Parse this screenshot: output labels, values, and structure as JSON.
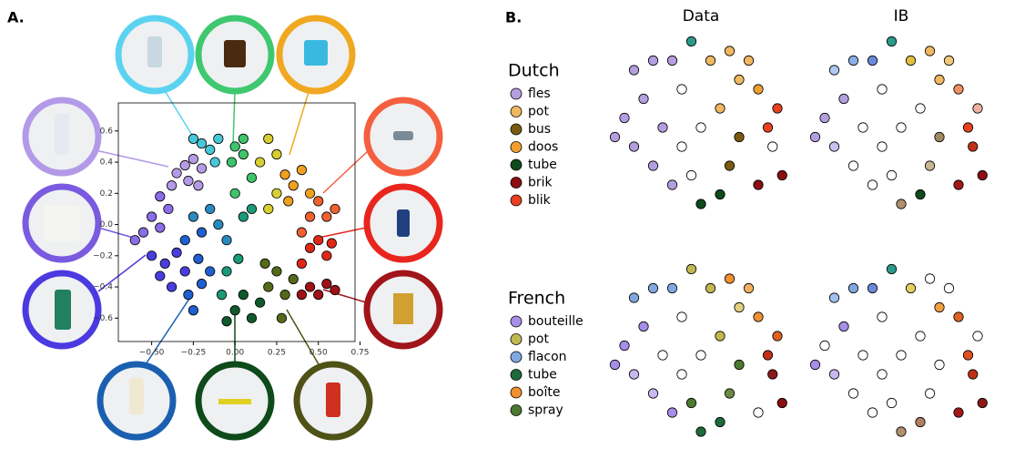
{
  "panel_labels": [
    "A.",
    "B."
  ],
  "chart_data": [
    {
      "type": "scatter",
      "xlim": [
        -0.7,
        0.72
      ],
      "ylim": [
        -0.75,
        0.78
      ],
      "xticks": [
        {
          "value": -0.5,
          "label": "−0.50"
        },
        {
          "value": -0.25,
          "label": "−0.25"
        },
        {
          "value": 0,
          "label": "0.00"
        },
        {
          "value": 0.25,
          "label": "0.25"
        },
        {
          "value": 0.5,
          "label": "0.50"
        },
        {
          "value": 0.75,
          "label": "0.75"
        }
      ],
      "yticks": [
        0.6,
        0.4,
        0.2,
        {
          "value": 0,
          "label": "0.0"
        },
        {
          "value": -0.2,
          "label": "−0.2"
        },
        {
          "value": -0.4,
          "label": "−0.4"
        },
        {
          "value": -0.6,
          "label": "−0.6"
        }
      ],
      "x": [
        -0.3,
        -0.35,
        -0.25,
        -0.2,
        -0.38,
        -0.28,
        -0.22,
        -0.45,
        -0.4,
        -0.5,
        -0.55,
        -0.45,
        -0.6,
        -0.5,
        -0.42,
        -0.35,
        -0.45,
        -0.3,
        -0.38,
        -0.28,
        -0.2,
        -0.22,
        -0.15,
        -0.25,
        -0.3,
        -0.2,
        -0.1,
        -0.05,
        -0.15,
        -0.25,
        -0.2,
        -0.15,
        -0.1,
        -0.25,
        -0.12,
        0.0,
        0.05,
        -0.02,
        0.05,
        0.1,
        0.0,
        -0.05,
        0.02,
        -0.08,
        0.05,
        0.1,
        0.0,
        0.05,
        0.1,
        0.15,
        -0.05,
        0.2,
        0.25,
        0.3,
        0.18,
        0.28,
        0.35,
        0.2,
        0.25,
        0.15,
        0.25,
        0.2,
        0.3,
        0.35,
        0.4,
        0.32,
        0.45,
        0.5,
        0.45,
        0.55,
        0.4,
        0.6,
        0.5,
        0.55,
        0.45,
        0.58,
        0.4,
        0.45,
        0.55,
        0.5,
        0.6,
        0.4
      ],
      "y": [
        0.38,
        0.33,
        0.42,
        0.36,
        0.25,
        0.28,
        0.25,
        0.18,
        0.1,
        0.05,
        -0.05,
        -0.02,
        -0.1,
        -0.2,
        -0.25,
        -0.18,
        -0.33,
        -0.3,
        -0.4,
        -0.45,
        -0.38,
        -0.22,
        -0.3,
        -0.55,
        -0.1,
        -0.05,
        0.0,
        -0.1,
        0.1,
        0.05,
        0.52,
        0.48,
        0.55,
        0.55,
        0.4,
        0.5,
        0.45,
        0.4,
        0.55,
        0.3,
        0.2,
        -0.3,
        -0.22,
        -0.45,
        0.05,
        0.1,
        -0.55,
        -0.45,
        -0.6,
        -0.5,
        -0.62,
        -0.4,
        -0.3,
        -0.45,
        -0.25,
        -0.6,
        -0.35,
        0.55,
        0.45,
        0.4,
        0.2,
        0.1,
        0.32,
        0.25,
        0.35,
        0.15,
        0.2,
        0.15,
        0.05,
        0.05,
        -0.05,
        0.1,
        -0.1,
        -0.2,
        -0.15,
        -0.12,
        -0.25,
        -0.4,
        -0.38,
        -0.45,
        -0.42,
        -0.45
      ],
      "colors": [
        "#b59be6",
        "#b59be6",
        "#b59be6",
        "#b59be6",
        "#b59be6",
        "#b59be6",
        "#b59be6",
        "#8a6de8",
        "#8a6de8",
        "#8a6de8",
        "#8a6de8",
        "#8a6de8",
        "#8a6de8",
        "#4a3de0",
        "#4a3de0",
        "#4a3de0",
        "#4a3de0",
        "#4a3de0",
        "#4a3de0",
        "#1f5fd0",
        "#1f5fd0",
        "#1f5fd0",
        "#1f5fd0",
        "#1f5fd0",
        "#1f5fd0",
        "#1f5fd0",
        "#2a8ac0",
        "#2a8ac0",
        "#2a8ac0",
        "#2a8ac0",
        "#46c8d8",
        "#46c8d8",
        "#46c8d8",
        "#46c8d8",
        "#46c8d8",
        "#3ec46a",
        "#3ec46a",
        "#3ec46a",
        "#3ec46a",
        "#3ec46a",
        "#3ec46a",
        "#1a9a78",
        "#1a9a78",
        "#1a9a78",
        "#1a9a78",
        "#1a9a78",
        "#0f5a2a",
        "#0f5a2a",
        "#0f5a2a",
        "#0f5a2a",
        "#0f5a2a",
        "#556a18",
        "#556a18",
        "#556a18",
        "#556a18",
        "#556a18",
        "#556a18",
        "#d6cf30",
        "#d6cf30",
        "#d6cf30",
        "#d6cf30",
        "#d6cf30",
        "#f0a020",
        "#f0a020",
        "#f0a020",
        "#f0a020",
        "#f0a020",
        "#f06030",
        "#f06030",
        "#f06030",
        "#f06030",
        "#f06030",
        "#e02818",
        "#e02818",
        "#e02818",
        "#e02818",
        "#e02818",
        "#a01018",
        "#a01018",
        "#a01018",
        "#a01018",
        "#a01018"
      ]
    },
    {
      "type": "scatter",
      "title": "Data",
      "xlim": [
        -1,
        1
      ],
      "ylim": [
        -1,
        1
      ],
      "legend": {
        "title": "Dutch",
        "names": [
          "fles",
          "pot",
          "bus",
          "doos",
          "tube",
          "brik",
          "blik"
        ],
        "colors": [
          "#b49ee0",
          "#f0b860",
          "#7a5a10",
          "#f0a030",
          "#0e4a1a",
          "#8a0e12",
          "#e84020"
        ]
      },
      "x": [
        -0.7,
        -0.5,
        -0.6,
        -0.8,
        -0.7,
        -0.5,
        -0.3,
        -0.4,
        -0.2,
        -0.1,
        0.1,
        0.3,
        0.4,
        0.6,
        0.8,
        0.7,
        0.75,
        0.85,
        0.6,
        0.3,
        0.2,
        0.0,
        -0.1,
        0.0,
        0.2,
        -0.2,
        0.4,
        -0.3,
        0.5,
        -0.9
      ],
      "y": [
        0.6,
        0.7,
        0.3,
        0.1,
        -0.2,
        -0.4,
        -0.6,
        0.0,
        0.4,
        0.9,
        0.7,
        0.8,
        0.5,
        0.4,
        0.2,
        0.0,
        -0.2,
        -0.5,
        -0.6,
        -0.4,
        -0.7,
        -0.8,
        -0.5,
        0.0,
        0.2,
        -0.2,
        -0.1,
        0.7,
        0.7,
        -0.1
      ],
      "colors": [
        "#b49ee0",
        "#b49ee0",
        "#b49ee0",
        "#b49ee0",
        "#b49ee0",
        "#b49ee0",
        "#b49ee0",
        "#b49ee0",
        "#ffffff",
        "#2a9a8a",
        "#f0b860",
        "#f0b860",
        "#f0b860",
        "#f0a030",
        "#e84020",
        "#e84020",
        "#ffffff",
        "#8a0e12",
        "#8a0e12",
        "#7a5a10",
        "#0e4a1a",
        "#0e4a1a",
        "#ffffff",
        "#ffffff",
        "#f0b860",
        "#ffffff",
        "#7a5a10",
        "#b49ee0",
        "#f0b860",
        "#b49ee0"
      ]
    },
    {
      "type": "scatter",
      "title": "IB",
      "xlim": [
        -1,
        1
      ],
      "ylim": [
        -1,
        1
      ],
      "x": [
        -0.7,
        -0.5,
        -0.6,
        -0.8,
        -0.7,
        -0.5,
        -0.3,
        -0.4,
        -0.2,
        -0.1,
        0.1,
        0.3,
        0.4,
        0.6,
        0.8,
        0.7,
        0.75,
        0.85,
        0.6,
        0.3,
        0.2,
        0.0,
        -0.1,
        0.0,
        0.2,
        -0.2,
        0.4,
        -0.3,
        0.5,
        -0.9
      ],
      "y": [
        0.6,
        0.7,
        0.3,
        0.1,
        -0.2,
        -0.4,
        -0.6,
        0.0,
        0.4,
        0.9,
        0.7,
        0.8,
        0.5,
        0.4,
        0.2,
        0.0,
        -0.2,
        -0.5,
        -0.6,
        -0.4,
        -0.7,
        -0.8,
        -0.5,
        0.0,
        0.2,
        -0.2,
        -0.1,
        0.7,
        0.7,
        -0.1
      ],
      "colors": [
        "#b0c8f0",
        "#8ab0e8",
        "#b49ee0",
        "#b49ee0",
        "#c8c0f0",
        "#ffffff",
        "#ffffff",
        "#ffffff",
        "#ffffff",
        "#2a9a8a",
        "#e0c040",
        "#f0b860",
        "#f0b860",
        "#f09060",
        "#f0b0a0",
        "#e84020",
        "#c03018",
        "#8a0e12",
        "#a01818",
        "#c8b890",
        "#0e4a1a",
        "#b09070",
        "#ffffff",
        "#ffffff",
        "#ffffff",
        "#ffffff",
        "#a08860",
        "#6a8ad8",
        "#f0c878",
        "#b49ee0"
      ]
    },
    {
      "type": "scatter",
      "xlim": [
        -1,
        1
      ],
      "ylim": [
        -1,
        1
      ],
      "legend": {
        "title": "French",
        "names": [
          "bouteille",
          "pot",
          "flacon",
          "tube",
          "boîte",
          "spray"
        ],
        "colors": [
          "#a78ee8",
          "#c0b850",
          "#7fa8e0",
          "#1e6a3a",
          "#f09030",
          "#4a7a30"
        ]
      },
      "x": [
        -0.7,
        -0.5,
        -0.6,
        -0.8,
        -0.7,
        -0.5,
        -0.3,
        -0.4,
        -0.2,
        -0.1,
        0.1,
        0.3,
        0.4,
        0.6,
        0.8,
        0.7,
        0.75,
        0.85,
        0.6,
        0.3,
        0.2,
        0.0,
        -0.1,
        0.0,
        0.2,
        -0.2,
        0.4,
        -0.3,
        0.5,
        -0.9
      ],
      "y": [
        0.6,
        0.7,
        0.3,
        0.1,
        -0.2,
        -0.4,
        -0.6,
        0.0,
        0.4,
        0.9,
        0.7,
        0.8,
        0.5,
        0.4,
        0.2,
        0.0,
        -0.2,
        -0.5,
        -0.6,
        -0.4,
        -0.7,
        -0.8,
        -0.5,
        0.0,
        0.2,
        -0.2,
        -0.1,
        0.7,
        0.7,
        -0.1
      ],
      "colors": [
        "#7fa8e0",
        "#7fa8e0",
        "#a78ee8",
        "#a78ee8",
        "#c8b8f0",
        "#c8b8f0",
        "#a78ee8",
        "#ffffff",
        "#ffffff",
        "#c0b850",
        "#c0b850",
        "#f09030",
        "#e0d080",
        "#f09030",
        "#e06020",
        "#c03018",
        "#8a1a1a",
        "#8a0e12",
        "#ffffff",
        "#6a8a40",
        "#1e6a3a",
        "#1e6a3a",
        "#4a7a30",
        "#ffffff",
        "#c0b850",
        "#ffffff",
        "#4a7a30",
        "#7fa8e0",
        "#f0b060",
        "#a78ee8"
      ]
    },
    {
      "type": "scatter",
      "xlim": [
        -1,
        1
      ],
      "ylim": [
        -1,
        1
      ],
      "x": [
        -0.7,
        -0.5,
        -0.6,
        -0.8,
        -0.7,
        -0.5,
        -0.3,
        -0.4,
        -0.2,
        -0.1,
        0.1,
        0.3,
        0.4,
        0.6,
        0.8,
        0.7,
        0.75,
        0.85,
        0.6,
        0.3,
        0.2,
        0.0,
        -0.1,
        0.0,
        0.2,
        -0.2,
        0.4,
        -0.3,
        0.5,
        -0.9
      ],
      "y": [
        0.6,
        0.7,
        0.3,
        0.1,
        -0.2,
        -0.4,
        -0.6,
        0.0,
        0.4,
        0.9,
        0.7,
        0.8,
        0.5,
        0.4,
        0.2,
        0.0,
        -0.2,
        -0.5,
        -0.6,
        -0.4,
        -0.7,
        -0.8,
        -0.5,
        0.0,
        0.2,
        -0.2,
        -0.1,
        0.7,
        0.7,
        -0.1
      ],
      "colors": [
        "#a0c0f0",
        "#7fa8e0",
        "#a78ee8",
        "#ffffff",
        "#c8b8f0",
        "#ffffff",
        "#ffffff",
        "#ffffff",
        "#ffffff",
        "#2a9a8a",
        "#e0d060",
        "#ffffff",
        "#f0a040",
        "#e06020",
        "#ffffff",
        "#e05020",
        "#c03018",
        "#8a1a1a",
        "#a01818",
        "#ffffff",
        "#b08060",
        "#b09070",
        "#ffffff",
        "#ffffff",
        "#ffffff",
        "#ffffff",
        "#ffffff",
        "#6a8ad8",
        "#ffffff",
        "#a78ee8"
      ]
    }
  ]
}
